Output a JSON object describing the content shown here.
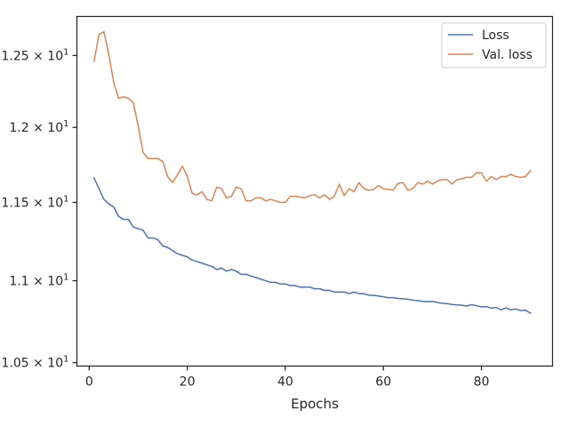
{
  "chart_data": {
    "type": "line",
    "title": "",
    "xlabel": "Epochs",
    "ylabel": "",
    "yscale": "log",
    "xlim": [
      -2.5,
      94.5
    ],
    "ylim": [
      10.48,
      12.78
    ],
    "grid": false,
    "legend_placement": "top-right",
    "x_ticks": [
      {
        "value": 0,
        "label": "0"
      },
      {
        "value": 20,
        "label": "20"
      },
      {
        "value": 40,
        "label": "40"
      },
      {
        "value": 60,
        "label": "60"
      },
      {
        "value": 80,
        "label": "80"
      }
    ],
    "y_ticks": [
      {
        "value": 10.5,
        "base": "1.05",
        "exp": "1"
      },
      {
        "value": 11.0,
        "base": "1.1",
        "exp": "1"
      },
      {
        "value": 11.5,
        "base": "1.15",
        "exp": "1"
      },
      {
        "value": 12.0,
        "base": "1.2",
        "exp": "1"
      },
      {
        "value": 12.5,
        "base": "1.25",
        "exp": "1"
      }
    ],
    "x": [
      1,
      2,
      3,
      4,
      5,
      6,
      7,
      8,
      9,
      10,
      11,
      12,
      13,
      14,
      15,
      16,
      17,
      18,
      19,
      20,
      21,
      22,
      23,
      24,
      25,
      26,
      27,
      28,
      29,
      30,
      31,
      32,
      33,
      34,
      35,
      36,
      37,
      38,
      39,
      40,
      41,
      42,
      43,
      44,
      45,
      46,
      47,
      48,
      49,
      50,
      51,
      52,
      53,
      54,
      55,
      56,
      57,
      58,
      59,
      60,
      61,
      62,
      63,
      64,
      65,
      66,
      67,
      68,
      69,
      70,
      71,
      72,
      73,
      74,
      75,
      76,
      77,
      78,
      79,
      80,
      81,
      82,
      83,
      84,
      85,
      86,
      87,
      88,
      89,
      90
    ],
    "series": [
      {
        "name": "Loss",
        "color": "#4c72b0",
        "values": [
          11.66,
          11.59,
          11.52,
          11.49,
          11.47,
          11.41,
          11.39,
          11.39,
          11.34,
          11.33,
          11.32,
          11.27,
          11.27,
          11.26,
          11.22,
          11.21,
          11.19,
          11.17,
          11.16,
          11.15,
          11.13,
          11.12,
          11.11,
          11.1,
          11.09,
          11.07,
          11.08,
          11.06,
          11.07,
          11.06,
          11.04,
          11.04,
          11.03,
          11.02,
          11.01,
          11.0,
          10.99,
          10.99,
          10.98,
          10.98,
          10.97,
          10.97,
          10.96,
          10.96,
          10.96,
          10.95,
          10.95,
          10.94,
          10.94,
          10.93,
          10.93,
          10.93,
          10.92,
          10.93,
          10.92,
          10.92,
          10.91,
          10.91,
          10.905,
          10.9,
          10.895,
          10.895,
          10.89,
          10.888,
          10.885,
          10.88,
          10.876,
          10.872,
          10.87,
          10.872,
          10.865,
          10.86,
          10.858,
          10.853,
          10.85,
          10.848,
          10.843,
          10.852,
          10.845,
          10.838,
          10.84,
          10.83,
          10.835,
          10.82,
          10.832,
          10.82,
          10.825,
          10.815,
          10.817,
          10.8
        ]
      },
      {
        "name": "Val. loss",
        "color": "#dd8452",
        "values": [
          12.46,
          12.65,
          12.67,
          12.51,
          12.31,
          12.2,
          12.21,
          12.2,
          12.17,
          12.01,
          11.83,
          11.79,
          11.79,
          11.79,
          11.77,
          11.67,
          11.63,
          11.68,
          11.74,
          11.67,
          11.56,
          11.55,
          11.57,
          11.52,
          11.51,
          11.6,
          11.59,
          11.53,
          11.54,
          11.6,
          11.59,
          11.51,
          11.51,
          11.53,
          11.53,
          11.51,
          11.52,
          11.51,
          11.5,
          11.5,
          11.54,
          11.54,
          11.535,
          11.53,
          11.545,
          11.55,
          11.53,
          11.55,
          11.52,
          11.54,
          11.62,
          11.545,
          11.59,
          11.57,
          11.63,
          11.59,
          11.58,
          11.585,
          11.61,
          11.59,
          11.585,
          11.58,
          11.625,
          11.63,
          11.58,
          11.59,
          11.63,
          11.62,
          11.64,
          11.62,
          11.64,
          11.65,
          11.65,
          11.62,
          11.65,
          11.655,
          11.665,
          11.665,
          11.695,
          11.695,
          11.64,
          11.67,
          11.65,
          11.67,
          11.67,
          11.685,
          11.67,
          11.665,
          11.67,
          11.71
        ]
      }
    ]
  }
}
